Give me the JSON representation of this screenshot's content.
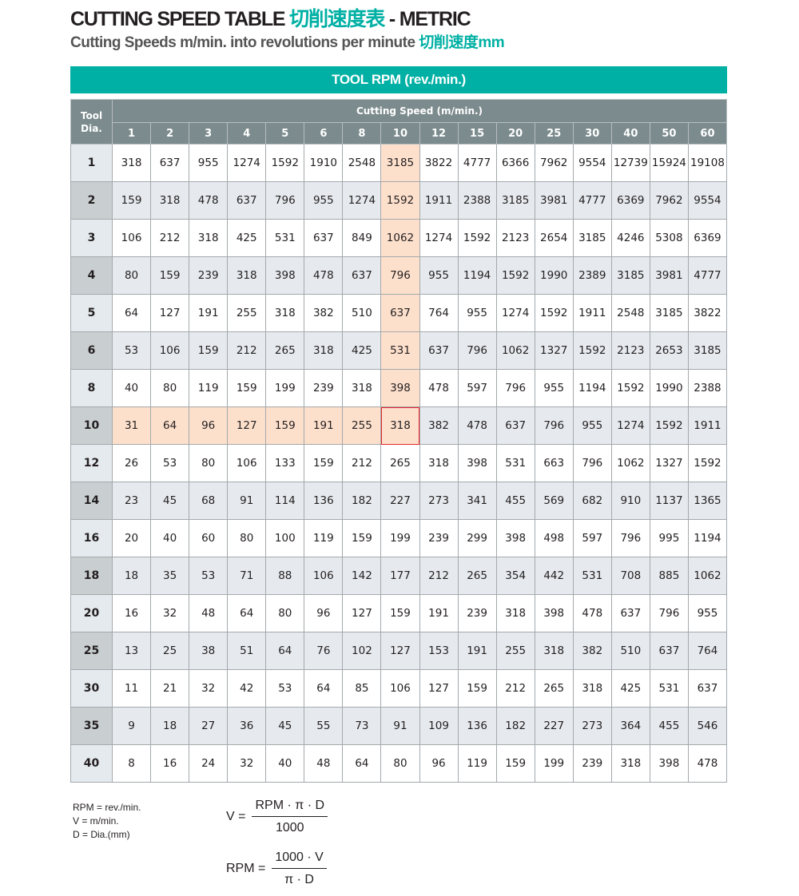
{
  "title": {
    "main": "CUTTING SPEED TABLE ",
    "cn": "切削速度表",
    "suffix": " - METRIC"
  },
  "subtitle": {
    "main": "Cutting Speeds m/min. into revolutions per minute ",
    "cn": "切削速度mm"
  },
  "banner": "TOOL RPM (rev./min.)",
  "table": {
    "dia_header": "Tool Dia.",
    "speed_header": "Cutting Speed (m/min.)",
    "speeds": [
      "1",
      "2",
      "3",
      "4",
      "5",
      "6",
      "8",
      "10",
      "12",
      "15",
      "20",
      "25",
      "30",
      "40",
      "50",
      "60"
    ],
    "highlight": {
      "speed": "10",
      "dia": "10"
    },
    "highlight_color": "#fde0cc",
    "rows": [
      {
        "dia": "1",
        "v": [
          "318",
          "637",
          "955",
          "1274",
          "1592",
          "1910",
          "2548",
          "3185",
          "3822",
          "4777",
          "6366",
          "7962",
          "9554",
          "12739",
          "15924",
          "19108"
        ]
      },
      {
        "dia": "2",
        "v": [
          "159",
          "318",
          "478",
          "637",
          "796",
          "955",
          "1274",
          "1592",
          "1911",
          "2388",
          "3185",
          "3981",
          "4777",
          "6369",
          "7962",
          "9554"
        ]
      },
      {
        "dia": "3",
        "v": [
          "106",
          "212",
          "318",
          "425",
          "531",
          "637",
          "849",
          "1062",
          "1274",
          "1592",
          "2123",
          "2654",
          "3185",
          "4246",
          "5308",
          "6369"
        ]
      },
      {
        "dia": "4",
        "v": [
          "80",
          "159",
          "239",
          "318",
          "398",
          "478",
          "637",
          "796",
          "955",
          "1194",
          "1592",
          "1990",
          "2389",
          "3185",
          "3981",
          "4777"
        ]
      },
      {
        "dia": "5",
        "v": [
          "64",
          "127",
          "191",
          "255",
          "318",
          "382",
          "510",
          "637",
          "764",
          "955",
          "1274",
          "1592",
          "1911",
          "2548",
          "3185",
          "3822"
        ]
      },
      {
        "dia": "6",
        "v": [
          "53",
          "106",
          "159",
          "212",
          "265",
          "318",
          "425",
          "531",
          "637",
          "796",
          "1062",
          "1327",
          "1592",
          "2123",
          "2653",
          "3185"
        ]
      },
      {
        "dia": "8",
        "v": [
          "40",
          "80",
          "119",
          "159",
          "199",
          "239",
          "318",
          "398",
          "478",
          "597",
          "796",
          "955",
          "1194",
          "1592",
          "1990",
          "2388"
        ]
      },
      {
        "dia": "10",
        "v": [
          "31",
          "64",
          "96",
          "127",
          "159",
          "191",
          "255",
          "318",
          "382",
          "478",
          "637",
          "796",
          "955",
          "1274",
          "1592",
          "1911"
        ]
      },
      {
        "dia": "12",
        "v": [
          "26",
          "53",
          "80",
          "106",
          "133",
          "159",
          "212",
          "265",
          "318",
          "398",
          "531",
          "663",
          "796",
          "1062",
          "1327",
          "1592"
        ]
      },
      {
        "dia": "14",
        "v": [
          "23",
          "45",
          "68",
          "91",
          "114",
          "136",
          "182",
          "227",
          "273",
          "341",
          "455",
          "569",
          "682",
          "910",
          "1137",
          "1365"
        ]
      },
      {
        "dia": "16",
        "v": [
          "20",
          "40",
          "60",
          "80",
          "100",
          "119",
          "159",
          "199",
          "239",
          "299",
          "398",
          "498",
          "597",
          "796",
          "995",
          "1194"
        ]
      },
      {
        "dia": "18",
        "v": [
          "18",
          "35",
          "53",
          "71",
          "88",
          "106",
          "142",
          "177",
          "212",
          "265",
          "354",
          "442",
          "531",
          "708",
          "885",
          "1062"
        ]
      },
      {
        "dia": "20",
        "v": [
          "16",
          "32",
          "48",
          "64",
          "80",
          "96",
          "127",
          "159",
          "191",
          "239",
          "318",
          "398",
          "478",
          "637",
          "796",
          "955"
        ]
      },
      {
        "dia": "25",
        "v": [
          "13",
          "25",
          "38",
          "51",
          "64",
          "76",
          "102",
          "127",
          "153",
          "191",
          "255",
          "318",
          "382",
          "510",
          "637",
          "764"
        ]
      },
      {
        "dia": "30",
        "v": [
          "11",
          "21",
          "32",
          "42",
          "53",
          "64",
          "85",
          "106",
          "127",
          "159",
          "212",
          "265",
          "318",
          "425",
          "531",
          "637"
        ]
      },
      {
        "dia": "35",
        "v": [
          "9",
          "18",
          "27",
          "36",
          "45",
          "55",
          "73",
          "91",
          "109",
          "136",
          "182",
          "227",
          "273",
          "364",
          "455",
          "546"
        ]
      },
      {
        "dia": "40",
        "v": [
          "8",
          "16",
          "24",
          "32",
          "40",
          "48",
          "64",
          "80",
          "96",
          "119",
          "159",
          "199",
          "239",
          "318",
          "398",
          "478"
        ]
      }
    ]
  },
  "legend": [
    "RPM = rev./min.",
    "V = m/min.",
    "D = Dia.(mm)"
  ],
  "formulas": [
    {
      "lhs": "V =",
      "num": "RPM · π · D",
      "den": "1000"
    },
    {
      "lhs": "RPM =",
      "num": "1000 · V",
      "den": "π · D"
    }
  ]
}
